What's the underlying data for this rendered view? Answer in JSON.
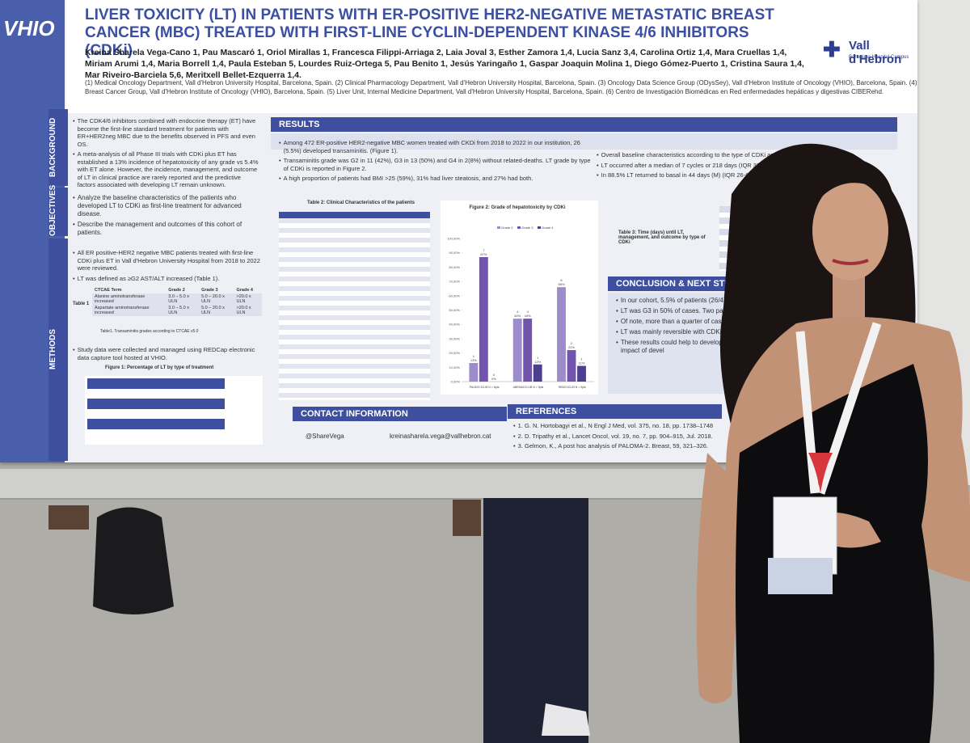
{
  "poster": {
    "logo_left": "VHIO",
    "logo_right": "Vall d'Hebron",
    "logo_right_sub": "Barcelona Hospital Campus",
    "title": "LIVER TOXICITY (LT) IN PATIENTS WITH ER-POSITIVE HER2-NEGATIVE METASTATIC BREAST CANCER (MBC) TREATED WITH FIRST-LINE CYCLIN-DEPENDENT KINASE 4/6 INHIBITORS (CDKi)",
    "authors": "Kreina Sharela Vega-Cano 1, Pau Mascaró 1, Oriol Mirallas 1, Francesca Filippi-Arriaga 2, Laia Joval 3, Esther Zamora 1,4, Lucia Sanz 3,4, Carolina Ortiz 1,4, Mara Cruellas 1,4, Miriam Arumi 1,4, Maria Borrell 1,4, Paula Esteban 5, Lourdes Ruiz-Ortega 5, Pau Benito 1, Jesús Yaringaño 1, Gaspar Joaquin Molina 1, Diego Gómez-Puerto 1, Cristina Saura 1,4, Mar Riveiro-Barciela 5,6, Meritxell Bellet-Ezquerra 1,4.",
    "affiliations": "(1) Medical Oncology Department, Vall d'Hebron University Hospital, Barcelona, Spain. (2) Clinical Pharmacology Department, Vall d'Hebron University Hospital, Barcelona, Spain. (3) Oncology Data Science Group (ODysSey), Vall d'Hebron Institute of Oncology (VHIO), Barcelona, Spain. (4) Breast Cancer Group, Vall d'Hebron Institute of Oncology (VHIO), Barcelona, Spain. (5) Liver Unit, Internal Medicine Department, Vall d'Hebron University Hospital, Barcelona, Spain. (6) Centro de Investigación Biomédicas en Red enfermedades hepáticas y digestivas CIBERehd.",
    "background": {
      "heading": "BACKGROUND",
      "items": [
        "The CDK4/6 inhibitors combined with endocrine therapy (ET) have become the first-line standard treatment for patients with ER+HER2neg MBC due to the benefits observed in PFS and even OS.",
        "A meta-analysis of all Phase III trials with CDKi plus ET has established a 13% incidence of hepatotoxicity of any grade vs 5.4% with ET alone. However, the incidence, management, and outcome of LT in clinical practice are rarely reported and the predictive factors associated with developing LT remain unknown."
      ]
    },
    "objectives": {
      "heading": "OBJECTIVES",
      "items": [
        "Analyze the baseline characteristics of the patients who developed LT to CDKi as first-line treatment for advanced disease.",
        "Describe the management and outcomes of this cohort of patients."
      ]
    },
    "methods": {
      "heading": "METHODS",
      "items": [
        "All ER positive-HER2 negative MBC patients treated with first-line CDKi plus ET in Vall d'Hebron University Hospital from 2018 to 2022 were reviewed.",
        "LT was defined as ≥G2 AST/ALT increased (Table 1)."
      ],
      "items_after": [
        "Study data were collected and managed using REDCap electronic data capture tool hosted at VHIO."
      ],
      "table1": {
        "label": "Table 1",
        "header": [
          "CTCAE Term",
          "Grade 2",
          "Grade 3",
          "Grade 4"
        ],
        "rows": [
          [
            "Alanine aminotransferase increased",
            "3.0 – 5.0 x ULN",
            "5.0 – 20.0 x ULN",
            ">20.0 x ULN"
          ],
          [
            "Aspartate aminotransferase increased",
            "3.0 – 5.0 x ULN",
            "5.0 – 20.0 x ULN",
            ">20.0 x ULN"
          ]
        ],
        "caption": "Table1. Transaminitis grades according to CTCAE v5.0"
      },
      "figure1_title": "Figure 1: Percentage of LT by type of treatment"
    },
    "results": {
      "heading": "RESULTS",
      "left_items": [
        "Among 472 ER-positive HER2-negative MBC women treated with CKDi from 2018 to 2022 in our institution, 26 (5.5%) developed transaminitis. (Figure 1).",
        "Transaminitis grade was G2 in 11 (42%), G3 in 13 (50%) and G4 in 2(8%) without related-deaths. LT grade by type of CDKi is reported in Figure 2.",
        "A high proportion of patients had BMI >25 (59%), 31% had liver steatosis, and 27% had both."
      ],
      "right_items": [
        "Overall baseline characteristics according to the type of CDKi are shown in Table 2.",
        "LT occurred after a median of 7 cycles or 218 days (IQR 37-399). One patient receiving",
        "In 88.5% LT returned to basal in 44 days (M) (IQR 26-61). CDKi was reintroduc"
      ],
      "table2_title": "Table 2: Clinical Characteristics of the patients",
      "table3_title": "Table 3: Time (days) until LT, management, and outcome by type of CDKi"
    },
    "conclusion": {
      "heading": "CONCLUSION & NEXT STEPS",
      "items": [
        "In our cohort, 5.5% of patients (26/472) ≥G2, 3% with palbociclib, 8% with ab",
        "LT was G3 in 50% of cases. Two pati of all cases with LT).",
        "Of note, more than a quarter of case",
        "LT was mainly reversible with CDKi i of new episodes of LT were observed",
        "These results could help to develop severe LT. At present, a case-control will also explore the impact of devel"
      ]
    },
    "contact": {
      "heading": "CONTACT INFORMATION",
      "twitter": "@ShareVega",
      "email": "kreinasharela.vega@vallhebron.cat"
    },
    "references": {
      "heading": "REFERENCES",
      "items": [
        "1. G. N. Hortobagyi et al., N Engl J Med, vol. 375, no. 18, pp. 1738–1748",
        "2. D. Tripathy et al., Lancet Oncol, vol. 19, no. 7, pp. 904–915, Jul. 2018.",
        "3. Gelmon, K., A post hoc analysis of PALOMA-2. Breast, 59, 321–326."
      ]
    }
  },
  "chart_data": {
    "type": "bar",
    "title": "Figure 2: Grade of hepatotoxicity by CDKi",
    "categories": [
      "PALBOCICLIB N = 8pts",
      "ABEMACICLIB N = 9pts",
      "RIBOCICLIB N = 9pts"
    ],
    "series": [
      {
        "name": "Grade 2",
        "color": "#9d8ccc",
        "values": [
          13,
          44,
          66
        ],
        "value_labels": [
          "13%",
          "44%",
          "66%"
        ],
        "counts": [
          1,
          4,
          6
        ]
      },
      {
        "name": "Grade 3",
        "color": "#7253ad",
        "values": [
          87,
          44,
          22
        ],
        "value_labels": [
          "87%",
          "44%",
          "22%"
        ],
        "counts": [
          7,
          4,
          2
        ]
      },
      {
        "name": "Grade 4",
        "color": "#4d3f8f",
        "values": [
          0,
          12,
          11
        ],
        "value_labels": [
          "0%",
          "12%",
          "11%"
        ],
        "counts": [
          0,
          1,
          1
        ]
      }
    ],
    "ylim": [
      0,
      100
    ],
    "yticks": [
      {
        "value": 0,
        "label": "0,00%"
      },
      {
        "value": 10,
        "label": "10,00%"
      },
      {
        "value": 20,
        "label": "20,00%"
      },
      {
        "value": 30,
        "label": "30,00%"
      },
      {
        "value": 40,
        "label": "40,00%"
      },
      {
        "value": 50,
        "label": "50,00%"
      },
      {
        "value": 60,
        "label": "60,00%"
      },
      {
        "value": 70,
        "label": "70,00%"
      },
      {
        "value": 80,
        "label": "80,00%"
      },
      {
        "value": 90,
        "label": "90,00%"
      },
      {
        "value": 100,
        "label": "100,00%"
      }
    ],
    "legend": "top"
  }
}
